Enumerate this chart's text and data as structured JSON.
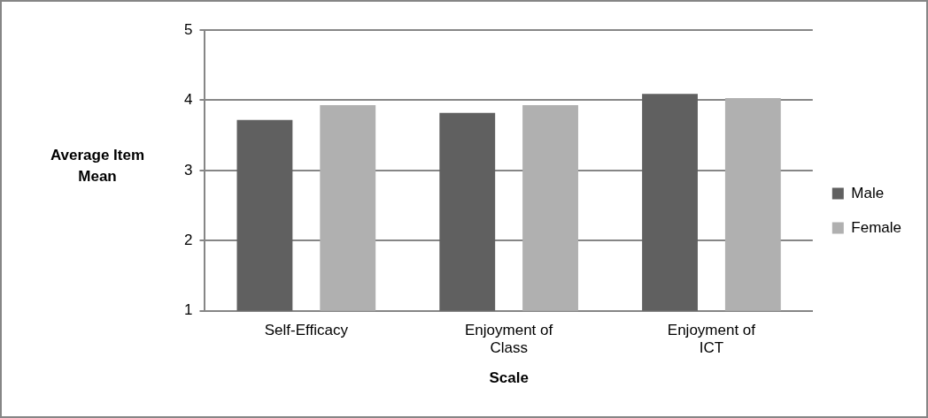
{
  "chart_data": {
    "type": "bar",
    "xlabel": "Scale",
    "ylabel": "Average Item Mean",
    "categories": [
      "Self-Efficacy",
      "Enjoyment of Class",
      "Enjoyment of ICT"
    ],
    "series": [
      {
        "name": "Male",
        "color": "#606060",
        "values": [
          3.72,
          3.82,
          4.09
        ]
      },
      {
        "name": "Female",
        "color": "#b0b0b0",
        "values": [
          3.93,
          3.93,
          4.03
        ]
      }
    ],
    "ylim": [
      1,
      5
    ],
    "yticks": [
      1,
      2,
      3,
      4,
      5
    ],
    "grid": "y",
    "legend": "right"
  }
}
